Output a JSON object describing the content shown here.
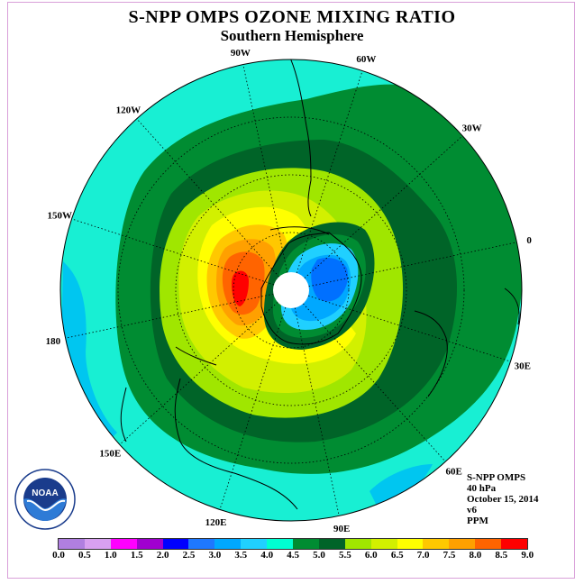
{
  "title": "S-NPP OMPS OZONE MIXING RATIO",
  "subtitle": "Southern Hemisphere",
  "lon_labels": [
    "90W",
    "60W",
    "30W",
    "0",
    "30E",
    "60E",
    "90E",
    "120E",
    "150E",
    "180",
    "150W",
    "120W"
  ],
  "info": {
    "line1": "S-NPP OMPS",
    "line2": "40 hPa",
    "line3": "October 15, 2014",
    "line4": "v6",
    "line5": "PPM"
  },
  "logo_text": "NOAA",
  "colorbar": {
    "ticks": [
      "0.0",
      "0.5",
      "1.0",
      "1.5",
      "2.0",
      "2.5",
      "3.0",
      "3.5",
      "4.0",
      "4.5",
      "5.0",
      "5.5",
      "6.0",
      "6.5",
      "7.0",
      "7.5",
      "8.0",
      "8.5",
      "9.0"
    ],
    "colors": [
      "#b07fe0",
      "#d8a0f0",
      "#ff00ff",
      "#a000d0",
      "#0000ff",
      "#1e78ff",
      "#00a8ff",
      "#20d0ff",
      "#00ffd2",
      "#008c32",
      "#006428",
      "#a0e600",
      "#d2f000",
      "#ffff00",
      "#ffc800",
      "#ffa000",
      "#ff6400",
      "#ff0000",
      "#a0522d"
    ]
  },
  "colors": {
    "band_3_5": "#18efd3",
    "band_4_0": "#00c6f0",
    "band_4_5": "#008c32",
    "band_5_0": "#006428",
    "band_5_5": "#a0e600",
    "band_6_0": "#d2f000",
    "band_6_5": "#ffff00",
    "band_7_0": "#ffc800",
    "band_7_5": "#ffa000",
    "band_8_0": "#ff6400",
    "band_8_5": "#ff0000",
    "vortex_low": "#0070ff",
    "vortex_mid": "#00a8ff",
    "vortex_edge": "#20d0ff"
  }
}
